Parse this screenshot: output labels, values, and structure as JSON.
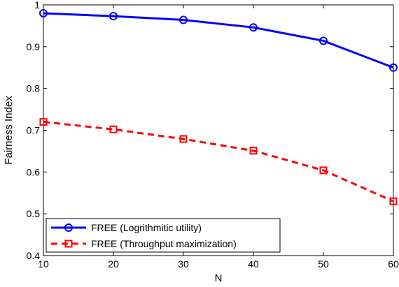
{
  "chart_data": {
    "type": "line",
    "xlabel": "N",
    "ylabel": "Fairness Index",
    "x": [
      10,
      20,
      30,
      40,
      50,
      60
    ],
    "xlim": [
      10,
      60
    ],
    "ylim": [
      0.4,
      1.0
    ],
    "xticks": [
      10,
      20,
      30,
      40,
      50,
      60
    ],
    "yticks": [
      0.4,
      0.5,
      0.6,
      0.7,
      0.8,
      0.9,
      1.0
    ],
    "ytick_labels": [
      "0.4",
      "0.5",
      "0.6",
      "0.7",
      "0.8",
      "0.9",
      "1"
    ],
    "grid": false,
    "legend_position": "bottom-left",
    "series": [
      {
        "name": "FREE (Logrithmitic utility)",
        "values": [
          0.98,
          0.973,
          0.964,
          0.946,
          0.914,
          0.85
        ],
        "color": "#0000ff",
        "line_style": "solid",
        "marker": "circle"
      },
      {
        "name": "FREE (Throughput maximization)",
        "values": [
          0.72,
          0.702,
          0.679,
          0.651,
          0.604,
          0.53
        ],
        "color": "#ff0000",
        "line_style": "dashed",
        "marker": "square"
      }
    ]
  }
}
